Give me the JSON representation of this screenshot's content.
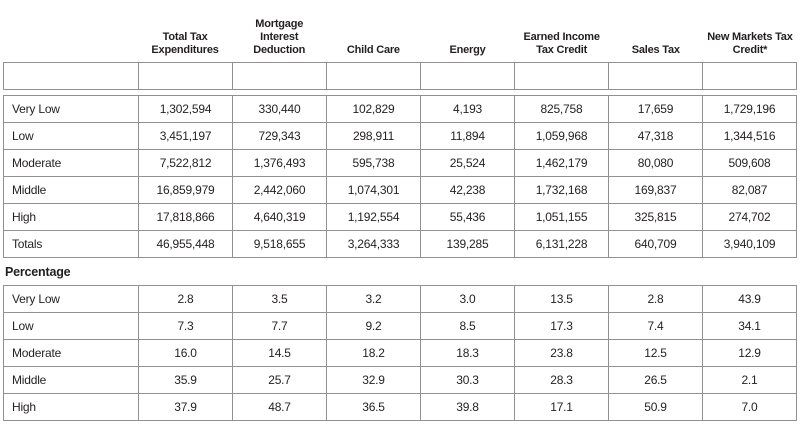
{
  "colors": {
    "text": "#231f20",
    "border": "#919191"
  },
  "columns": [
    "Total Tax Expenditures",
    "Mortgage Interest Deduction",
    "Child Care",
    "Energy",
    "Earned Income Tax Credit",
    "Sales Tax",
    "New Markets Tax Credit*"
  ],
  "sections": {
    "amounts": {
      "rows": [
        {
          "label": "Very Low",
          "values": [
            "1,302,594",
            "330,440",
            "102,829",
            "4,193",
            "825,758",
            "17,659",
            "1,729,196"
          ]
        },
        {
          "label": "Low",
          "values": [
            "3,451,197",
            "729,343",
            "298,911",
            "11,894",
            "1,059,968",
            "47,318",
            "1,344,516"
          ]
        },
        {
          "label": "Moderate",
          "values": [
            "7,522,812",
            "1,376,493",
            "595,738",
            "25,524",
            "1,462,179",
            "80,080",
            "509,608"
          ]
        },
        {
          "label": "Middle",
          "values": [
            "16,859,979",
            "2,442,060",
            "1,074,301",
            "42,238",
            "1,732,168",
            "169,837",
            "82,087"
          ]
        },
        {
          "label": "High",
          "values": [
            "17,818,866",
            "4,640,319",
            "1,192,554",
            "55,436",
            "1,051,155",
            "325,815",
            "274,702"
          ]
        },
        {
          "label": "Totals",
          "values": [
            "46,955,448",
            "9,518,655",
            "3,264,333",
            "139,285",
            "6,131,228",
            "640,709",
            "3,940,109"
          ]
        }
      ]
    },
    "percentage": {
      "label": "Percentage",
      "rows": [
        {
          "label": "Very Low",
          "values": [
            "2.8",
            "3.5",
            "3.2",
            "3.0",
            "13.5",
            "2.8",
            "43.9"
          ]
        },
        {
          "label": "Low",
          "values": [
            "7.3",
            "7.7",
            "9.2",
            "8.5",
            "17.3",
            "7.4",
            "34.1"
          ]
        },
        {
          "label": "Moderate",
          "values": [
            "16.0",
            "14.5",
            "18.2",
            "18.3",
            "23.8",
            "12.5",
            "12.9"
          ]
        },
        {
          "label": "Middle",
          "values": [
            "35.9",
            "25.7",
            "32.9",
            "30.3",
            "28.3",
            "26.5",
            "2.1"
          ]
        },
        {
          "label": "High",
          "values": [
            "37.9",
            "48.7",
            "36.5",
            "39.8",
            "17.1",
            "50.9",
            "7.0"
          ]
        }
      ]
    }
  }
}
